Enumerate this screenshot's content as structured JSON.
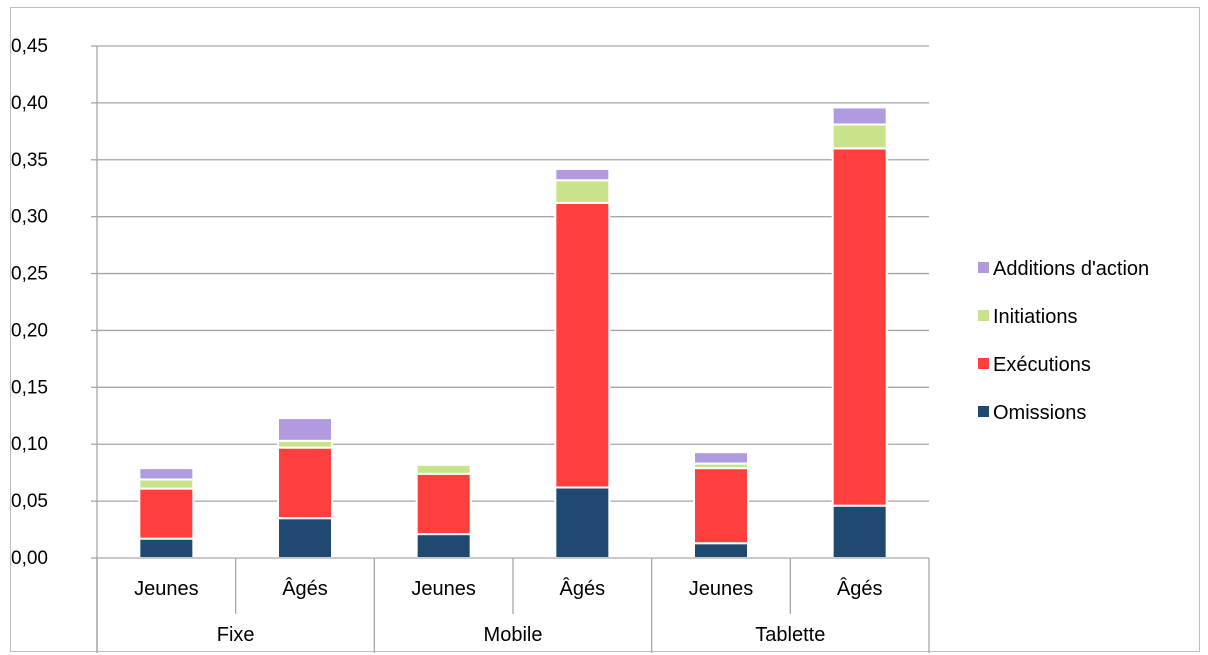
{
  "chart_data": {
    "type": "bar",
    "stacked": true,
    "title": "",
    "xlabel": "",
    "ylabel": "",
    "ylim": [
      0,
      0.45
    ],
    "y_ticks": [
      "0,00",
      "0,05",
      "0,10",
      "0,15",
      "0,20",
      "0,25",
      "0,30",
      "0,35",
      "0,40",
      "0,45"
    ],
    "y_tick_values": [
      0,
      0.05,
      0.1,
      0.15,
      0.2,
      0.25,
      0.3,
      0.35,
      0.4,
      0.45
    ],
    "grid": true,
    "legend_position": "right",
    "categories": [
      "Jeunes",
      "Âgés",
      "Jeunes",
      "Âgés",
      "Jeunes",
      "Âgés"
    ],
    "groups": [
      {
        "label": "Fixe",
        "categories": [
          "Jeunes",
          "Âgés"
        ]
      },
      {
        "label": "Mobile",
        "categories": [
          "Jeunes",
          "Âgés"
        ]
      },
      {
        "label": "Tablette",
        "categories": [
          "Jeunes",
          "Âgés"
        ]
      }
    ],
    "series": [
      {
        "name": "Omissions",
        "color": "#1f4970",
        "values": [
          0.017,
          0.035,
          0.021,
          0.062,
          0.013,
          0.046
        ]
      },
      {
        "name": "Exécutions",
        "color": "#ff3f3d",
        "values": [
          0.044,
          0.062,
          0.053,
          0.25,
          0.066,
          0.314
        ]
      },
      {
        "name": "Initiations",
        "color": "#c9e38b",
        "values": [
          0.008,
          0.006,
          0.008,
          0.02,
          0.004,
          0.021
        ]
      },
      {
        "name": "Additions d'action",
        "color": "#b19be0",
        "values": [
          0.01,
          0.02,
          0.001,
          0.01,
          0.01,
          0.015
        ]
      }
    ]
  }
}
